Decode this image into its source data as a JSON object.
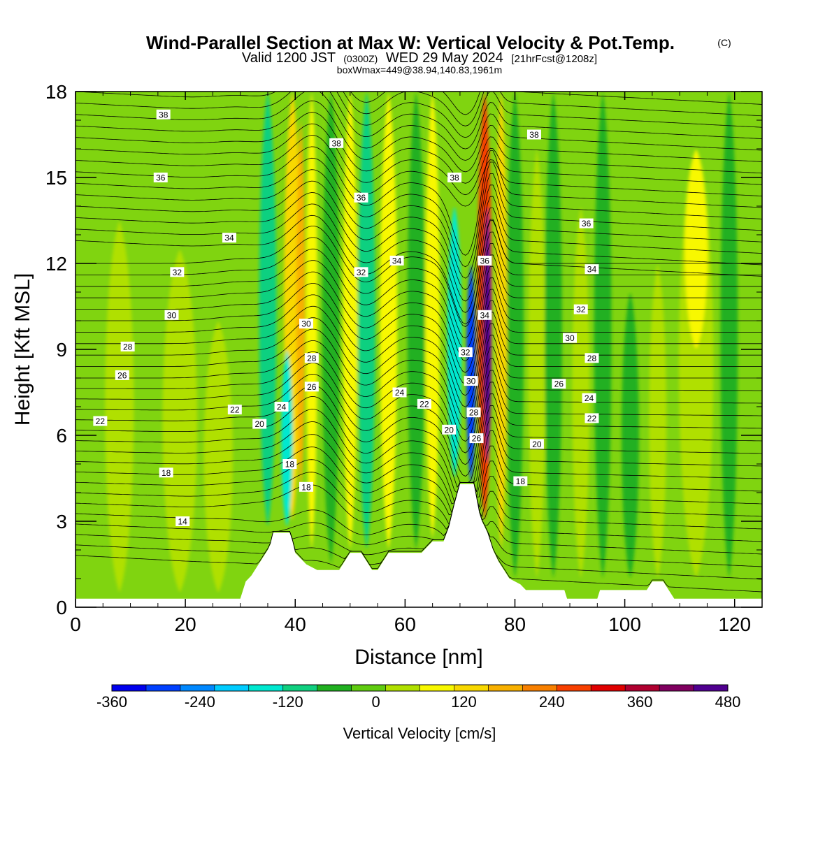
{
  "chart_data": {
    "type": "heatmap",
    "title": {
      "main": "Wind-Parallel Section at Max W: Vertical Velocity & Pot.Temp.",
      "copyright": "(C)",
      "valid_prefix": "Valid 1200 JST",
      "valid_utc": "(0300Z)",
      "valid_date": "WED 29 May 2024",
      "forecast": "[21hrFcst@1208z]",
      "box": "boxWmax=449@38.94,140.83,1961m"
    },
    "xlabel": "Distance [nm]",
    "ylabel": "Height [Kft MSL]",
    "xlim": [
      0,
      125
    ],
    "ylim": [
      0,
      18
    ],
    "x_ticks": [
      "0",
      "20",
      "40",
      "60",
      "80",
      "100",
      "120"
    ],
    "y_ticks": [
      "0",
      "3",
      "6",
      "9",
      "12",
      "15",
      "18"
    ],
    "colorbar": {
      "label": "Vertical Velocity [cm/s]",
      "ticks": [
        "-360",
        "-240",
        "-120",
        "0",
        "120",
        "240",
        "360",
        "480"
      ],
      "range": [
        -360,
        480
      ],
      "colors": [
        "#0000ee",
        "#0040ff",
        "#0088ff",
        "#00ccff",
        "#00e8d0",
        "#10d080",
        "#20b020",
        "#60cc10",
        "#b0e000",
        "#f8f800",
        "#f8d800",
        "#f8b000",
        "#f88000",
        "#f84000",
        "#e00000",
        "#b00030",
        "#800060",
        "#500090"
      ]
    },
    "terrain": [
      [
        0,
        0.3
      ],
      [
        30,
        0.3
      ],
      [
        30.5,
        0.6
      ],
      [
        31,
        0.9
      ],
      [
        32,
        1.1
      ],
      [
        33,
        1.4
      ],
      [
        34,
        1.7
      ],
      [
        35,
        2.0
      ],
      [
        35.5,
        2.2
      ],
      [
        36,
        2.6
      ],
      [
        39,
        2.6
      ],
      [
        39.5,
        2.3
      ],
      [
        40,
        1.9
      ],
      [
        41,
        1.7
      ],
      [
        42,
        1.5
      ],
      [
        44,
        1.3
      ],
      [
        48,
        1.3
      ],
      [
        49,
        1.6
      ],
      [
        50,
        1.9
      ],
      [
        52,
        1.9
      ],
      [
        53,
        1.6
      ],
      [
        54,
        1.3
      ],
      [
        55,
        1.3
      ],
      [
        56,
        1.6
      ],
      [
        57,
        1.9
      ],
      [
        63,
        1.9
      ],
      [
        64,
        2.1
      ],
      [
        65,
        2.3
      ],
      [
        67,
        2.3
      ],
      [
        68,
        2.8
      ],
      [
        69,
        3.6
      ],
      [
        70,
        4.3
      ],
      [
        72.5,
        4.3
      ],
      [
        73,
        3.8
      ],
      [
        73.5,
        3.3
      ],
      [
        74,
        3.0
      ],
      [
        75,
        2.6
      ],
      [
        76,
        2.0
      ],
      [
        77,
        1.6
      ],
      [
        78,
        1.3
      ],
      [
        79,
        1.0
      ],
      [
        80,
        0.9
      ],
      [
        81,
        0.8
      ],
      [
        82,
        0.6
      ],
      [
        83,
        0.6
      ],
      [
        87,
        0.6
      ],
      [
        89,
        0.6
      ],
      [
        89.5,
        0.3
      ],
      [
        95,
        0.3
      ],
      [
        95.5,
        0.6
      ],
      [
        104,
        0.6
      ],
      [
        105,
        0.9
      ],
      [
        107,
        0.9
      ],
      [
        108,
        0.6
      ],
      [
        109,
        0.3
      ],
      [
        125,
        0.3
      ]
    ],
    "w_features": [
      {
        "x": 8,
        "value": 40,
        "zmin": 0.5,
        "zmax": 13.5,
        "width": 5
      },
      {
        "x": 19,
        "value": 40,
        "zmin": 0.5,
        "zmax": 12.5,
        "width": 6
      },
      {
        "x": 26,
        "value": 30,
        "zmin": 0.5,
        "zmax": 10,
        "width": 5
      },
      {
        "x": 35,
        "value": -90,
        "zmin": 2.8,
        "zmax": 18,
        "width": 3
      },
      {
        "x": 38.5,
        "value": -130,
        "zmin": 2.8,
        "zmax": 9,
        "width": 2
      },
      {
        "x": 39.5,
        "value": 120,
        "zmin": 3,
        "zmax": 18,
        "width": 3
      },
      {
        "x": 41,
        "value": 160,
        "zmin": 4,
        "zmax": 17,
        "width": 1.5
      },
      {
        "x": 43,
        "value": 80,
        "zmin": 2,
        "zmax": 18,
        "width": 2
      },
      {
        "x": 46.5,
        "value": -70,
        "zmin": 1.5,
        "zmax": 18,
        "width": 3
      },
      {
        "x": 50,
        "value": 80,
        "zmin": 2,
        "zmax": 18,
        "width": 2.5
      },
      {
        "x": 53,
        "value": -90,
        "zmin": 2,
        "zmax": 18,
        "width": 3
      },
      {
        "x": 57,
        "value": 80,
        "zmin": 2,
        "zmax": 18,
        "width": 3
      },
      {
        "x": 62,
        "value": -60,
        "zmin": 2,
        "zmax": 18,
        "width": 3
      },
      {
        "x": 65,
        "value": 80,
        "zmin": 2.4,
        "zmax": 18,
        "width": 2.5
      },
      {
        "x": 69,
        "value": -150,
        "zmin": 4.5,
        "zmax": 14,
        "width": 2.5
      },
      {
        "x": 72,
        "value": -280,
        "zmin": 4.3,
        "zmax": 12,
        "width": 1.6
      },
      {
        "x": 75,
        "value": 449,
        "zmin": 5,
        "zmax": 14,
        "width": 1.3
      },
      {
        "x": 74.5,
        "value": 250,
        "zmin": 3,
        "zmax": 18,
        "width": 2.5
      },
      {
        "x": 77.5,
        "value": 120,
        "zmin": 2,
        "zmax": 18,
        "width": 2
      },
      {
        "x": 80,
        "value": -50,
        "zmin": 1,
        "zmax": 18,
        "width": 3
      },
      {
        "x": 84,
        "value": 40,
        "zmin": 1,
        "zmax": 16,
        "width": 3
      },
      {
        "x": 87,
        "value": -50,
        "zmin": 1,
        "zmax": 18,
        "width": 3
      },
      {
        "x": 92,
        "value": 40,
        "zmin": 1,
        "zmax": 14,
        "width": 3
      },
      {
        "x": 96,
        "value": -40,
        "zmin": 1,
        "zmax": 18,
        "width": 3
      },
      {
        "x": 101,
        "value": -40,
        "zmin": 1,
        "zmax": 11,
        "width": 3
      },
      {
        "x": 106,
        "value": 40,
        "zmin": 1,
        "zmax": 12,
        "width": 3
      },
      {
        "x": 113,
        "value": 90,
        "zmin": 9,
        "zmax": 16,
        "width": 4
      },
      {
        "x": 113,
        "value": 40,
        "zmin": 1,
        "zmax": 16,
        "width": 6
      },
      {
        "x": 119,
        "value": -40,
        "zmin": 1,
        "zmax": 18,
        "width": 3
      }
    ],
    "theta_labels": [
      {
        "text": "38",
        "x": 16,
        "y": 17.2
      },
      {
        "text": "38",
        "x": 47.5,
        "y": 16.2
      },
      {
        "text": "38",
        "x": 69,
        "y": 15.0
      },
      {
        "text": "38",
        "x": 83.5,
        "y": 16.5
      },
      {
        "text": "36",
        "x": 15.5,
        "y": 15.0
      },
      {
        "text": "36",
        "x": 52,
        "y": 14.3
      },
      {
        "text": "36",
        "x": 74.5,
        "y": 12.1
      },
      {
        "text": "36",
        "x": 93,
        "y": 13.4
      },
      {
        "text": "34",
        "x": 28,
        "y": 12.9
      },
      {
        "text": "34",
        "x": 58.5,
        "y": 12.1
      },
      {
        "text": "34",
        "x": 74.5,
        "y": 10.2
      },
      {
        "text": "34",
        "x": 94,
        "y": 11.8
      },
      {
        "text": "32",
        "x": 18.5,
        "y": 11.7
      },
      {
        "text": "32",
        "x": 52,
        "y": 11.7
      },
      {
        "text": "32",
        "x": 71,
        "y": 8.9
      },
      {
        "text": "32",
        "x": 92,
        "y": 10.4
      },
      {
        "text": "30",
        "x": 17.5,
        "y": 10.2
      },
      {
        "text": "30",
        "x": 42,
        "y": 9.9
      },
      {
        "text": "30",
        "x": 72,
        "y": 7.9
      },
      {
        "text": "30",
        "x": 90,
        "y": 9.4
      },
      {
        "text": "28",
        "x": 9.5,
        "y": 9.1
      },
      {
        "text": "28",
        "x": 43,
        "y": 8.7
      },
      {
        "text": "28",
        "x": 72.5,
        "y": 6.8
      },
      {
        "text": "28",
        "x": 94,
        "y": 8.7
      },
      {
        "text": "26",
        "x": 8.5,
        "y": 8.1
      },
      {
        "text": "26",
        "x": 43,
        "y": 7.7
      },
      {
        "text": "26",
        "x": 73,
        "y": 5.9
      },
      {
        "text": "26",
        "x": 88,
        "y": 7.8
      },
      {
        "text": "24",
        "x": 37.5,
        "y": 7.0
      },
      {
        "text": "24",
        "x": 59,
        "y": 7.5
      },
      {
        "text": "24",
        "x": 93.5,
        "y": 7.3
      },
      {
        "text": "22",
        "x": 4.5,
        "y": 6.5
      },
      {
        "text": "22",
        "x": 29,
        "y": 6.9
      },
      {
        "text": "22",
        "x": 63.5,
        "y": 7.1
      },
      {
        "text": "22",
        "x": 94,
        "y": 6.6
      },
      {
        "text": "20",
        "x": 33.5,
        "y": 6.4
      },
      {
        "text": "20",
        "x": 68,
        "y": 6.2
      },
      {
        "text": "20",
        "x": 84,
        "y": 5.7
      },
      {
        "text": "18",
        "x": 16.5,
        "y": 4.7
      },
      {
        "text": "18",
        "x": 39,
        "y": 5.0
      },
      {
        "text": "18",
        "x": 42,
        "y": 4.2
      },
      {
        "text": "18",
        "x": 81,
        "y": 4.4
      },
      {
        "text": "14",
        "x": 19.5,
        "y": 3.0
      }
    ]
  }
}
